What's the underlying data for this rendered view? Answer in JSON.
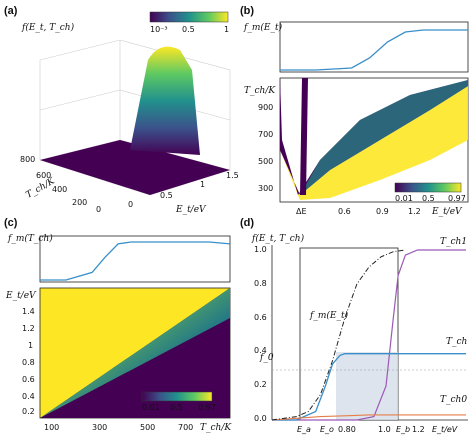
{
  "colors": {
    "viridis": [
      "#440154",
      "#3b528b",
      "#21918c",
      "#5ec962",
      "#fde725"
    ],
    "curve_blue": "#3a8fc9",
    "curve_purple": "#9b59b6",
    "curve_orange": "#e67e4a",
    "shade": "#d5dde8"
  },
  "panels": {
    "a": {
      "label": "(a)",
      "zlabel": "f(E_t, T_ch)",
      "cb_ticks": [
        "10⁻³",
        "0.5",
        "1"
      ],
      "tch_label": "T_ch/K",
      "tch_ticks": [
        "800",
        "600",
        "400",
        "200",
        "0"
      ],
      "et_label": "E_t/eV",
      "et_ticks": [
        "0",
        "0.5",
        "1",
        "1.5"
      ]
    },
    "b": {
      "label": "(b)",
      "top_label": "f_m(E_t)",
      "y_label": "T_ch/K",
      "y_ticks": [
        "900",
        "700",
        "500",
        "300"
      ],
      "x_ticks": [
        "ΔE",
        "0.6",
        "0.9",
        "1.2"
      ],
      "x_label": "E_t/eV",
      "cb_ticks": [
        "0.01",
        "0.5",
        "0.97"
      ]
    },
    "c": {
      "label": "(c)",
      "top_label": "f_m(T_ch)",
      "y_label": "E_t/eV",
      "y_ticks": [
        "1.4",
        "1.2",
        "1",
        "0.8",
        "0.6",
        "0.4",
        "0.2"
      ],
      "x_ticks": [
        "100",
        "300",
        "500",
        "700"
      ],
      "x_label": "T_ch/K",
      "cb_ticks": [
        "0.01",
        "0.5",
        "0.97"
      ]
    },
    "d": {
      "label": "(d)",
      "y_label": "f(E_t, T_ch)",
      "y_ticks": [
        "1.0",
        "0.8",
        "0.6",
        "0.4",
        "0.2",
        "0.0"
      ],
      "f0_label": "f_0",
      "x_ticks": [
        "E_a",
        "E_o",
        "0.80",
        "1.0",
        "E_b",
        "1.2",
        "E_t/eV"
      ],
      "curve_labels": {
        "tch1": "T_ch1",
        "tch": "T_ch",
        "tch0": "T_ch0",
        "fm": "f_m(E_t)"
      }
    }
  },
  "chart_data": [
    {
      "panel": "b-top",
      "type": "line",
      "series": [
        {
          "name": "f_m(E_t)",
          "x": [
            0.3,
            0.5,
            0.7,
            0.8,
            0.9,
            1.0,
            1.1,
            1.2,
            1.35
          ],
          "values": [
            0,
            0,
            0.05,
            0.3,
            0.7,
            0.95,
            1,
            1,
            1
          ]
        }
      ]
    },
    {
      "panel": "c-top",
      "type": "line",
      "series": [
        {
          "name": "f_m(T_ch)",
          "x": [
            50,
            150,
            250,
            300,
            350,
            400,
            500,
            600,
            700,
            780
          ],
          "values": [
            0,
            0,
            0.2,
            0.6,
            0.95,
            1,
            1,
            1,
            1,
            0.95
          ]
        }
      ]
    },
    {
      "panel": "d",
      "type": "line",
      "series": [
        {
          "name": "T_ch1",
          "x": [
            0.5,
            0.7,
            0.85,
            0.92,
            0.97,
            1.0,
            1.02,
            1.05,
            1.1,
            1.2,
            1.3
          ],
          "values": [
            0,
            0,
            0,
            0.02,
            0.2,
            0.6,
            0.85,
            0.97,
            1,
            1,
            1
          ]
        },
        {
          "name": "T_ch",
          "x": [
            0.5,
            0.6,
            0.68,
            0.72,
            0.75,
            0.78,
            0.8,
            0.9,
            1.0,
            1.1,
            1.2,
            1.3
          ],
          "values": [
            0,
            0,
            0.05,
            0.2,
            0.33,
            0.38,
            0.39,
            0.39,
            0.39,
            0.39,
            0.39,
            0.39
          ]
        },
        {
          "name": "T_ch0",
          "x": [
            0.5,
            0.6,
            0.7,
            0.8,
            0.9,
            1.0,
            1.1,
            1.2,
            1.3
          ],
          "values": [
            0,
            0.01,
            0.02,
            0.025,
            0.03,
            0.03,
            0.03,
            0.03,
            0.03
          ]
        },
        {
          "name": "f_m(E_t)",
          "x": [
            0.5,
            0.6,
            0.65,
            0.7,
            0.75,
            0.8,
            0.85,
            0.9,
            0.95,
            1.0,
            1.05
          ],
          "values": [
            0,
            0.02,
            0.05,
            0.15,
            0.35,
            0.6,
            0.8,
            0.9,
            0.96,
            0.99,
            1
          ]
        }
      ]
    }
  ]
}
